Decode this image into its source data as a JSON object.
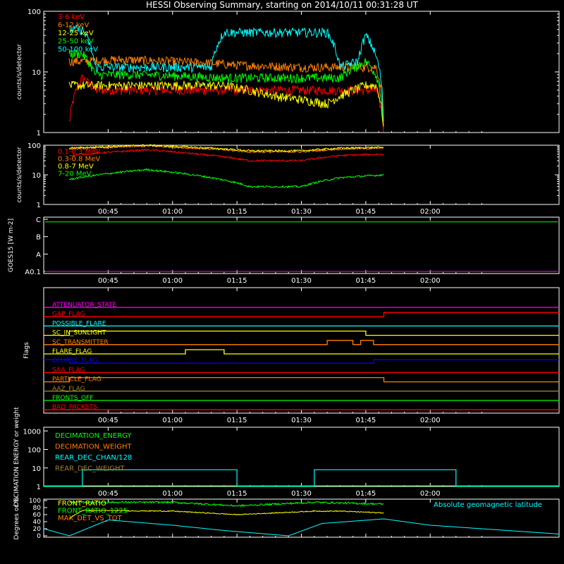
{
  "title": "HESSI Observing Summary, starting on 2014/10/11 00:31:28 UT",
  "time_ticks": [
    "00:45",
    "01:00",
    "01:15",
    "01:30",
    "01:45",
    "02:00"
  ],
  "colors": {
    "red": "#ff0000",
    "orange": "#ff8000",
    "yellow": "#ffff00",
    "green": "#00ff00",
    "cyan": "#00ffff",
    "magenta": "#ff00ff",
    "blue": "#0000ff",
    "olive": "#a08030"
  },
  "chart_data": [
    {
      "id": "low_energy",
      "type": "line",
      "ylabel": "counts/s/detector",
      "yscale": "log",
      "yticks": [
        "1",
        "10",
        "100"
      ],
      "legend": [
        "3-6 keV",
        "6-12 keV",
        "12-25 keV",
        "25-50 keV",
        "50-100 keV"
      ],
      "series": [
        {
          "name": "3-6 keV",
          "color": "#ff0000",
          "x": [
            0.6,
            0.65,
            0.7,
            1.0,
            1.25,
            1.5,
            1.75,
            1.79,
            1.82
          ],
          "y": [
            1.5,
            8,
            5,
            5,
            5,
            5,
            5,
            5,
            1
          ]
        },
        {
          "name": "6-12 keV",
          "color": "#ff8000",
          "x": [
            0.65,
            0.8,
            1.0,
            1.15,
            1.25,
            1.5,
            1.7,
            1.79,
            1.82
          ],
          "y": [
            15,
            16,
            15,
            14,
            13,
            12,
            12,
            12,
            1
          ]
        },
        {
          "name": "12-25 keV",
          "color": "#ffff00",
          "x": [
            0.7,
            0.9,
            1.2,
            1.4,
            1.6,
            1.75,
            1.79,
            1.82
          ],
          "y": [
            6,
            6,
            6,
            4,
            3,
            6,
            6,
            1
          ]
        },
        {
          "name": "25-50 keV",
          "color": "#00ff00",
          "x": [
            0.6,
            0.65,
            0.7,
            0.9,
            1.2,
            1.4,
            1.65,
            1.75,
            1.79,
            1.82
          ],
          "y": [
            20,
            20,
            9,
            9,
            8,
            8,
            8,
            15,
            9,
            1
          ]
        },
        {
          "name": "50-100 keV",
          "color": "#00ffff",
          "x": [
            0.6,
            0.65,
            0.7,
            1.15,
            1.2,
            1.6,
            1.65,
            1.72,
            1.75,
            1.79,
            1.82
          ],
          "y": [
            50,
            50,
            12,
            12,
            45,
            45,
            12,
            15,
            40,
            18,
            1
          ]
        }
      ]
    },
    {
      "id": "high_energy",
      "type": "line",
      "ylabel": "counts/s/detector",
      "yscale": "log",
      "yticks": [
        "1",
        "10",
        "100"
      ],
      "legend": [
        "0.1-0.3 MeV",
        "0.3-0.8 MeV",
        "0.8-7 MeV",
        "7-20 MeV"
      ],
      "series": [
        {
          "name": "0.1-0.3 MeV",
          "color": "#ff0000",
          "x": [
            0.6,
            0.9,
            1.15,
            1.3,
            1.5,
            1.65,
            1.82
          ],
          "y": [
            45,
            70,
            45,
            30,
            30,
            45,
            50
          ]
        },
        {
          "name": "0.3-0.8 MeV",
          "color": "#ff8000",
          "x": [
            0.6,
            0.9,
            1.15,
            1.3,
            1.5,
            1.65,
            1.82
          ],
          "y": [
            75,
            95,
            75,
            60,
            60,
            75,
            80
          ]
        },
        {
          "name": "0.8-7 MeV",
          "color": "#ffff00",
          "x": [
            0.6,
            0.9,
            1.15,
            1.3,
            1.5,
            1.65,
            1.82
          ],
          "y": [
            80,
            100,
            80,
            65,
            65,
            80,
            85
          ]
        },
        {
          "name": "7-20 MeV",
          "color": "#00ff00",
          "x": [
            0.6,
            0.9,
            1.15,
            1.3,
            1.5,
            1.65,
            1.82
          ],
          "y": [
            7,
            15,
            8,
            4,
            4,
            8,
            10
          ]
        }
      ]
    },
    {
      "id": "goes",
      "type": "line",
      "ylabel": "GOES15 [W m-2]",
      "yticks": [
        "A0.1",
        "A",
        "B",
        "C"
      ],
      "series": [
        {
          "name": "GOES",
          "color": "#00ff00",
          "x": [
            0.5,
            2.5
          ],
          "y": [
            3.0,
            3.0
          ]
        }
      ]
    },
    {
      "id": "flags",
      "type": "line",
      "ylabel": "Flags",
      "series": [
        {
          "name": "ATTENUATOR_STATE",
          "color": "#ff00ff"
        },
        {
          "name": "GAP_FLAG",
          "color": "#ff0000"
        },
        {
          "name": "POSSIBLE_FLARE",
          "color": "#00ffff"
        },
        {
          "name": "SC_IN_SUNLIGHT",
          "color": "#ffff00"
        },
        {
          "name": "SC_TRANSMITTER",
          "color": "#ff8000"
        },
        {
          "name": "FLARE_FLAG",
          "color": "#ffff00"
        },
        {
          "name": "ECLIPSE_FLAG",
          "color": "#0000ff"
        },
        {
          "name": "SAA_FLAG",
          "color": "#ff0000"
        },
        {
          "name": "PARTICLE_FLAG",
          "color": "#ff8000"
        },
        {
          "name": "AAZ_FLAG",
          "color": "#a08030"
        },
        {
          "name": "FRONTS_OFF",
          "color": "#00ff00"
        },
        {
          "name": "BAD_PACKETS",
          "color": "#ff0000"
        }
      ]
    },
    {
      "id": "decimation",
      "type": "line",
      "ylabel": "DECIMATION ENERGY or weight",
      "yscale": "log",
      "yticks": [
        "1",
        "10",
        "100",
        "1000"
      ],
      "legend": [
        "DECIMATION_ENERGY",
        "DECIMATION_WEIGHT",
        "REAR_DEC_CHAN/128",
        "REAR_DEC_WEIGHT"
      ],
      "series": [
        {
          "name": "DECIMATION_ENERGY",
          "color": "#00ff00"
        },
        {
          "name": "DECIMATION_WEIGHT",
          "color": "#ff8000"
        },
        {
          "name": "REAR_DEC_CHAN/128",
          "color": "#00ffff",
          "x": [
            0.5,
            0.65,
            0.65,
            1.25,
            1.25,
            1.55,
            1.55,
            2.1,
            2.1,
            2.5
          ],
          "y": [
            1,
            1,
            8,
            8,
            1,
            1,
            8,
            8,
            1,
            1
          ]
        },
        {
          "name": "REAR_DEC_WEIGHT",
          "color": "#a08030"
        }
      ]
    },
    {
      "id": "ratios",
      "type": "line",
      "ylabel": "Degrees or %",
      "yticks": [
        "0",
        "20",
        "40",
        "60",
        "80",
        "100"
      ],
      "legend": [
        "FRONT_RATIO",
        "FRONT_RATIO_1225",
        "MAX_DET_VS_TOT"
      ],
      "annotation": "Absolute geomagnetic latitude",
      "series": [
        {
          "name": "FRONT_RATIO",
          "color": "#ffff00",
          "x": [
            0.6,
            0.65,
            1.0,
            1.25,
            1.55,
            1.65,
            1.82
          ],
          "y": [
            50,
            72,
            70,
            60,
            70,
            70,
            65
          ]
        },
        {
          "name": "FRONT_RATIO_1225",
          "color": "#00ff00",
          "x": [
            0.6,
            1.0,
            1.25,
            1.55,
            1.82
          ],
          "y": [
            95,
            95,
            85,
            95,
            90
          ]
        },
        {
          "name": "MAX_DET_VS_TOT",
          "color": "#ff8000"
        },
        {
          "name": "Absolute geomagnetic latitude",
          "color": "#00ffff",
          "x": [
            0.5,
            0.6,
            0.75,
            1.0,
            1.2,
            1.45,
            1.58,
            1.82,
            2.0,
            2.5
          ],
          "y": [
            20,
            0,
            45,
            30,
            15,
            0,
            35,
            48,
            30,
            5
          ]
        }
      ]
    }
  ]
}
